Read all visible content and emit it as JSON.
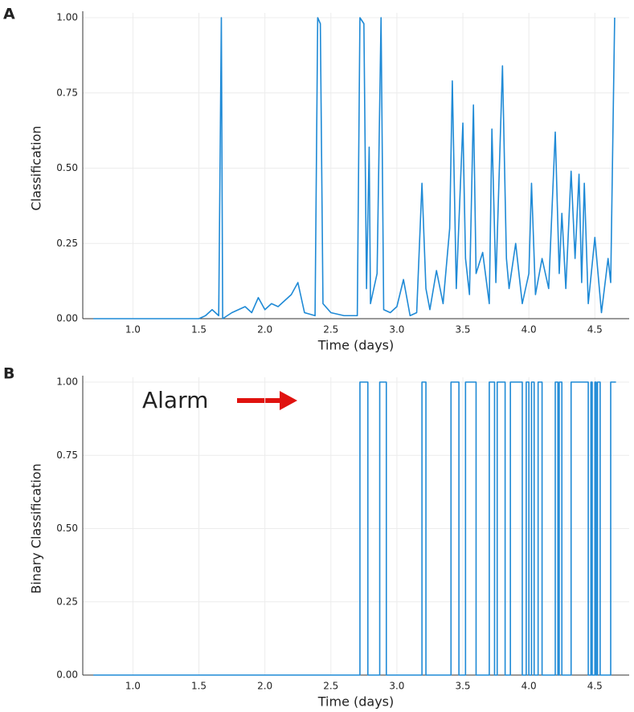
{
  "chart_data": [
    {
      "type": "line",
      "panel_label": "A",
      "xlabel": "Time (days)",
      "ylabel": "Classification",
      "xlim": [
        0.62,
        4.76
      ],
      "ylim": [
        0,
        1.0
      ],
      "grid": true,
      "color": "#1f8ad6",
      "xticks": [
        {
          "value": 1,
          "label": "1.0"
        },
        {
          "value": 1.5,
          "label": "1.5"
        },
        {
          "value": 2,
          "label": "2.0"
        },
        {
          "value": 2.5,
          "label": "2.5"
        },
        {
          "value": 3,
          "label": "3.0"
        },
        {
          "value": 3.5,
          "label": "3.5"
        },
        {
          "value": 4,
          "label": "4.0"
        },
        {
          "value": 4.5,
          "label": "4.5"
        }
      ],
      "yticks": [
        {
          "value": 0,
          "label": "0.00"
        },
        {
          "value": 0.25,
          "label": "0.25"
        },
        {
          "value": 0.5,
          "label": "0.50"
        },
        {
          "value": 0.75,
          "label": "0.75"
        },
        {
          "value": 1,
          "label": "1.00"
        }
      ],
      "x": [
        0.7,
        1.0,
        1.5,
        1.55,
        1.6,
        1.65,
        1.67,
        1.68,
        1.75,
        1.8,
        1.85,
        1.9,
        1.95,
        2.0,
        2.05,
        2.1,
        2.15,
        2.2,
        2.25,
        2.3,
        2.38,
        2.4,
        2.42,
        2.44,
        2.5,
        2.6,
        2.7,
        2.72,
        2.75,
        2.77,
        2.79,
        2.8,
        2.85,
        2.88,
        2.9,
        2.95,
        3.0,
        3.05,
        3.1,
        3.15,
        3.19,
        3.22,
        3.25,
        3.3,
        3.35,
        3.4,
        3.42,
        3.45,
        3.5,
        3.52,
        3.55,
        3.58,
        3.6,
        3.65,
        3.7,
        3.72,
        3.75,
        3.8,
        3.83,
        3.85,
        3.9,
        3.95,
        4.0,
        4.02,
        4.05,
        4.1,
        4.15,
        4.2,
        4.23,
        4.25,
        4.28,
        4.32,
        4.35,
        4.38,
        4.4,
        4.42,
        4.45,
        4.5,
        4.55,
        4.6,
        4.62,
        4.64,
        4.65
      ],
      "values": [
        0,
        0,
        0,
        0.01,
        0.03,
        0.01,
        1.0,
        0,
        0.02,
        0.03,
        0.04,
        0.02,
        0.07,
        0.03,
        0.05,
        0.04,
        0.06,
        0.08,
        0.12,
        0.02,
        0.01,
        1.0,
        0.98,
        0.05,
        0.02,
        0.01,
        0.01,
        1.0,
        0.98,
        0.1,
        0.57,
        0.05,
        0.15,
        1.0,
        0.03,
        0.02,
        0.04,
        0.13,
        0.01,
        0.02,
        0.45,
        0.1,
        0.03,
        0.16,
        0.05,
        0.3,
        0.79,
        0.1,
        0.65,
        0.2,
        0.08,
        0.71,
        0.15,
        0.22,
        0.05,
        0.63,
        0.12,
        0.84,
        0.2,
        0.1,
        0.25,
        0.05,
        0.15,
        0.45,
        0.08,
        0.2,
        0.1,
        0.62,
        0.15,
        0.35,
        0.1,
        0.49,
        0.2,
        0.48,
        0.12,
        0.45,
        0.05,
        0.27,
        0.02,
        0.2,
        0.12,
        0.71,
        1.0
      ]
    },
    {
      "type": "step",
      "panel_label": "B",
      "xlabel": "Time (days)",
      "ylabel": "Binary Classification",
      "annotation": "Alarm",
      "xlim": [
        0.62,
        4.76
      ],
      "ylim": [
        0,
        1.0
      ],
      "grid": true,
      "color": "#1f8ad6",
      "xticks": [
        {
          "value": 1,
          "label": "1.0"
        },
        {
          "value": 1.5,
          "label": "1.5"
        },
        {
          "value": 2,
          "label": "2.0"
        },
        {
          "value": 2.5,
          "label": "2.5"
        },
        {
          "value": 3,
          "label": "3.0"
        },
        {
          "value": 3.5,
          "label": "3.5"
        },
        {
          "value": 4,
          "label": "4.0"
        },
        {
          "value": 4.5,
          "label": "4.5"
        }
      ],
      "yticks": [
        {
          "value": 0,
          "label": "0.00"
        },
        {
          "value": 0.25,
          "label": "0.25"
        },
        {
          "value": 0.5,
          "label": "0.50"
        },
        {
          "value": 0.75,
          "label": "0.75"
        },
        {
          "value": 1,
          "label": "1.00"
        }
      ],
      "x": [
        0.7,
        2.72,
        2.78,
        2.87,
        2.92,
        3.19,
        3.22,
        3.41,
        3.47,
        3.52,
        3.6,
        3.7,
        3.74,
        3.76,
        3.82,
        3.86,
        3.95,
        3.98,
        4.0,
        4.02,
        4.04,
        4.07,
        4.1,
        4.2,
        4.22,
        4.23,
        4.25,
        4.32,
        4.45,
        4.47,
        4.48,
        4.5,
        4.51,
        4.52,
        4.54,
        4.62,
        4.66
      ],
      "values": [
        0,
        1,
        0,
        1,
        0,
        1,
        0,
        1,
        0,
        1,
        0,
        1,
        0,
        1,
        0,
        1,
        0,
        1,
        0,
        1,
        0,
        1,
        0,
        1,
        0,
        1,
        0,
        1,
        0,
        1,
        0,
        1,
        0,
        1,
        0,
        1,
        1
      ]
    }
  ]
}
